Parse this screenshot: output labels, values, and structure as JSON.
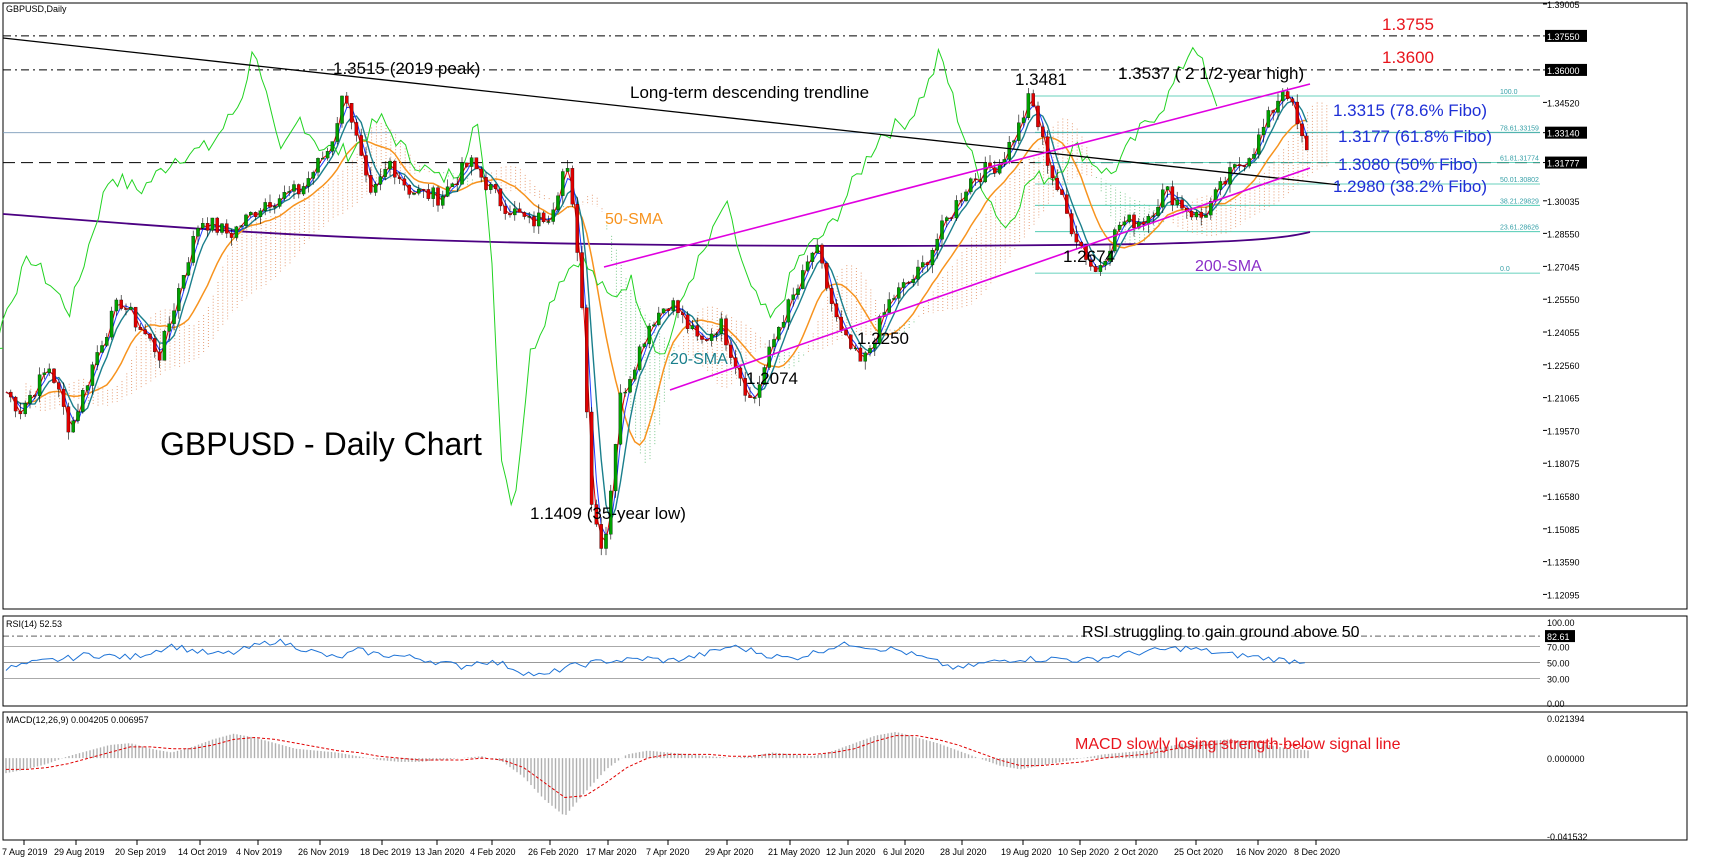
{
  "chart_data": {
    "type": "candlestick",
    "symbol": "GBPUSD,Daily",
    "title": "GBPUSD - Daily Chart",
    "x_labels": [
      "7 Aug 2019",
      "29 Aug 2019",
      "20 Sep 2019",
      "14 Oct 2019",
      "4 Nov 2019",
      "26 Nov 2019",
      "18 Dec 2019",
      "13 Jan 2020",
      "4 Feb 2020",
      "26 Feb 2020",
      "17 Mar 2020",
      "7 Apr 2020",
      "29 Apr 2020",
      "21 May 2020",
      "12 Jun 2020",
      "6 Jul 2020",
      "28 Jul 2020",
      "19 Aug 2020",
      "10 Sep 2020",
      "2 Oct 2020",
      "25 Oct 2020",
      "16 Nov 2020",
      "8 Dec 2020"
    ],
    "price_ticks": [
      "1.39005",
      "1.37550",
      "1.36000",
      "1.34520",
      "1.33140",
      "1.31777",
      "1.30035",
      "1.28550",
      "1.27045",
      "1.25550",
      "1.24055",
      "1.22560",
      "1.21065",
      "1.19570",
      "1.18075",
      "1.16580",
      "1.15085",
      "1.13590",
      "1.12095"
    ],
    "price_ticks_boxed": [
      "1.37550",
      "1.36000",
      "1.33140",
      "1.31777"
    ],
    "price_range": [
      1.1143,
      1.3905
    ],
    "price_series": [
      {
        "date": "7 Aug 2019",
        "close": 1.21
      },
      {
        "date": "29 Aug 2019",
        "close": 1.224
      },
      {
        "date": "20 Sep 2019",
        "close": 1.248
      },
      {
        "date": "14 Oct 2019",
        "close": 1.266
      },
      {
        "date": "4 Nov 2019",
        "close": 1.29
      },
      {
        "date": "26 Nov 2019",
        "close": 1.29
      },
      {
        "date": "18 Dec 2019",
        "close": 1.308
      },
      {
        "date": "13 Jan 2020",
        "close": 1.303
      },
      {
        "date": "4 Feb 2020",
        "close": 1.3
      },
      {
        "date": "26 Feb 2020",
        "close": 1.29
      },
      {
        "date": "17 Mar 2020",
        "close": 1.16
      },
      {
        "date": "7 Apr 2020",
        "close": 1.238
      },
      {
        "date": "29 Apr 2020",
        "close": 1.242
      },
      {
        "date": "21 May 2020",
        "close": 1.22
      },
      {
        "date": "12 Jun 2020",
        "close": 1.255
      },
      {
        "date": "6 Jul 2020",
        "close": 1.25
      },
      {
        "date": "28 Jul 2020",
        "close": 1.295
      },
      {
        "date": "19 Aug 2020",
        "close": 1.32
      },
      {
        "date": "10 Sep 2020",
        "close": 1.285
      },
      {
        "date": "2 Oct 2020",
        "close": 1.295
      },
      {
        "date": "25 Oct 2020",
        "close": 1.305
      },
      {
        "date": "16 Nov 2020",
        "close": 1.325
      },
      {
        "date": "8 Dec 2020",
        "close": 1.33
      }
    ],
    "key_points": [
      {
        "label": "1.3515 (2019 peak)",
        "value": 1.3515,
        "date": "13 Dec 2019"
      },
      {
        "label": "1.1409 (35-year low)",
        "value": 1.1409,
        "date": "20 Mar 2020"
      },
      {
        "label": "1.2074",
        "value": 1.2074,
        "date": "18 May 2020"
      },
      {
        "label": "1.2250",
        "value": 1.225,
        "date": "29 Jun 2020"
      },
      {
        "label": "1.3481",
        "value": 1.3481,
        "date": "1 Sep 2020"
      },
      {
        "label": "1.2674",
        "value": 1.2674,
        "date": "23 Sep 2020"
      },
      {
        "label": "1.3537 ( 2 1/2-year high)",
        "value": 1.3537,
        "date": "4 Dec 2020"
      }
    ],
    "levels": [
      {
        "label": "1.3755",
        "value": 1.3755,
        "color": "#e8141c"
      },
      {
        "label": "1.3600",
        "value": 1.36,
        "color": "#e8141c"
      },
      {
        "label": "1.3315 (78.6% Fibo)",
        "value": 1.3315,
        "color": "#1e2fd6"
      },
      {
        "label": "1.3177 (61.8% Fibo)",
        "value": 1.3177,
        "color": "#1e2fd6"
      },
      {
        "label": "1.3080 (50% Fibo)",
        "value": 1.308,
        "color": "#1e2fd6"
      },
      {
        "label": "1.2980 (38.2% Fibo)",
        "value": 1.298,
        "color": "#1e2fd6"
      }
    ],
    "fibo_levels": [
      {
        "label": "100.0",
        "value": 1.3481
      },
      {
        "label": "78.61.33159",
        "value": 1.33159
      },
      {
        "label": "61.81.31774",
        "value": 1.31774
      },
      {
        "label": "50.01.30802",
        "value": 1.30802
      },
      {
        "label": "38.21.29829",
        "value": 1.29829
      },
      {
        "label": "23.61.28626",
        "value": 1.28626
      },
      {
        "label": "0.0",
        "value": 1.2674
      }
    ],
    "annotations": {
      "trendline": "Long-term descending trendline",
      "sma50": "50-SMA",
      "sma20": "20-SMA",
      "sma200": "200-SMA",
      "rsi_note": "RSI struggling to gain ground above 50",
      "macd_note": "MACD slowly losing strength below signal line"
    },
    "rsi": {
      "header": "RSI(14) 52.53",
      "current": 52.53,
      "range": [
        0,
        100
      ],
      "ticks": [
        "100.00",
        "82.61",
        "70.00",
        "50.00",
        "30.00",
        "0.00"
      ],
      "boxed": "82.61",
      "levels": [
        82.61,
        70,
        50,
        30
      ],
      "values": [
        42,
        48,
        52,
        55,
        60,
        58,
        56,
        63,
        71,
        65,
        60,
        62,
        70,
        77,
        70,
        62,
        55,
        65,
        60,
        58,
        55,
        50,
        45,
        52,
        48,
        38,
        33,
        44,
        48,
        52,
        53,
        55,
        52,
        56,
        62,
        70,
        65,
        58,
        55,
        62,
        70,
        73,
        68,
        66,
        58,
        50,
        42,
        48,
        52,
        55,
        54,
        55,
        52,
        56,
        60,
        63,
        66,
        68,
        64,
        60,
        58,
        55,
        52,
        52
      ]
    },
    "macd": {
      "header": "MACD(12,26,9) 0.004205 0.006957",
      "macd": 0.004205,
      "signal": 0.006957,
      "ticks": [
        "0.021394",
        "0.000000",
        "-0.041532"
      ],
      "hist": [
        -0.008,
        -0.006,
        -0.003,
        0.001,
        0.004,
        0.007,
        0.008,
        0.005,
        0.003,
        0.006,
        0.01,
        0.013,
        0.011,
        0.008,
        0.005,
        0.004,
        0.003,
        0.001,
        -0.001,
        -0.002,
        -0.002,
        -0.001,
        0.0,
        0.001,
        -0.002,
        -0.01,
        -0.022,
        -0.031,
        -0.018,
        -0.006,
        0.002,
        0.004,
        0.003,
        0.002,
        0.001,
        0.0,
        0.001,
        0.003,
        0.002,
        0.001,
        0.004,
        0.008,
        0.012,
        0.014,
        0.011,
        0.008,
        0.004,
        0.0,
        -0.004,
        -0.006,
        -0.004,
        -0.002,
        0.0,
        0.002,
        0.003,
        0.004,
        0.006,
        0.008,
        0.009,
        0.01,
        0.009,
        0.007,
        0.005,
        0.004
      ],
      "signal_values": [
        -0.006,
        -0.006,
        -0.005,
        -0.003,
        0.0,
        0.003,
        0.006,
        0.006,
        0.005,
        0.005,
        0.007,
        0.01,
        0.011,
        0.01,
        0.008,
        0.006,
        0.004,
        0.003,
        0.001,
        0.0,
        -0.001,
        -0.001,
        -0.001,
        0.0,
        -0.001,
        -0.005,
        -0.013,
        -0.021,
        -0.02,
        -0.013,
        -0.005,
        0.0,
        0.002,
        0.002,
        0.002,
        0.001,
        0.001,
        0.002,
        0.002,
        0.002,
        0.003,
        0.005,
        0.009,
        0.012,
        0.012,
        0.01,
        0.007,
        0.003,
        -0.001,
        -0.004,
        -0.004,
        -0.003,
        -0.002,
        0.0,
        0.001,
        0.002,
        0.004,
        0.006,
        0.007,
        0.008,
        0.009,
        0.008,
        0.007,
        0.006
      ]
    }
  }
}
